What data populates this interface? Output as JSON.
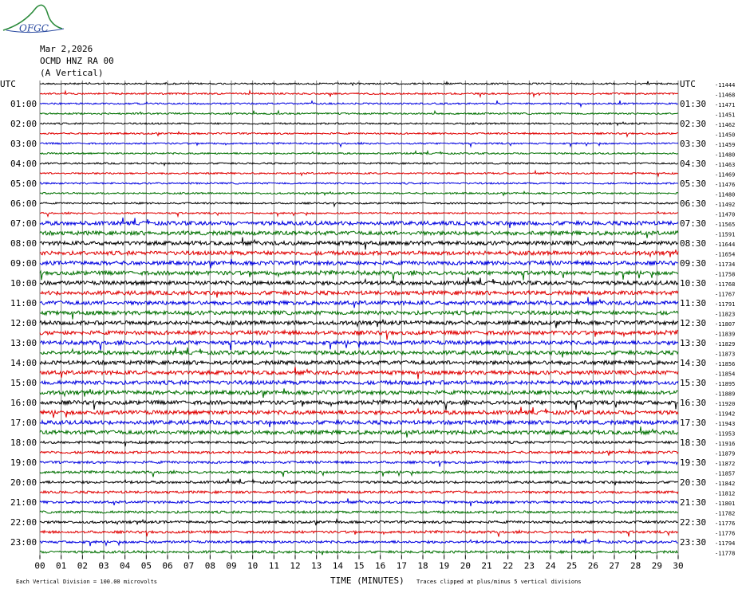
{
  "header": {
    "logo": "OFGC",
    "date": "Mar 2,2026",
    "station": "OCMD HNZ RA 00",
    "component": "(A Vertical)"
  },
  "left_labels": [
    "UTC",
    "01:00",
    "02:00",
    "03:00",
    "04:00",
    "05:00",
    "06:00",
    "07:00",
    "08:00",
    "09:00",
    "10:00",
    "11:00",
    "12:00",
    "13:00",
    "14:00",
    "15:00",
    "16:00",
    "17:00",
    "18:00",
    "19:00",
    "20:00",
    "21:00",
    "22:00",
    "23:00"
  ],
  "right_labels": [
    "UTC",
    "01:30",
    "02:30",
    "03:30",
    "04:30",
    "05:30",
    "06:30",
    "07:30",
    "08:30",
    "09:30",
    "10:30",
    "11:30",
    "12:30",
    "13:30",
    "14:30",
    "15:30",
    "16:30",
    "17:30",
    "18:30",
    "19:30",
    "20:30",
    "21:30",
    "22:30",
    "23:30"
  ],
  "offsets": [
    -11444,
    -11468,
    -11471,
    -11451,
    -11462,
    -11450,
    -11459,
    -11480,
    -11463,
    -11469,
    -11476,
    -11480,
    -11492,
    -11470,
    -11565,
    -11591,
    -11644,
    -11654,
    -11734,
    -11758,
    -11768,
    -11767,
    -11791,
    -11823,
    -11807,
    -11839,
    -11829,
    -11873,
    -11856,
    -11854,
    -11895,
    -11889,
    -11920,
    -11942,
    -11943,
    -11953,
    -11916,
    -11879,
    -11872,
    -11857,
    -11842,
    -11812,
    -11801,
    -11782,
    -11776,
    -11776,
    -11794,
    -11778
  ],
  "x_ticks": [
    "00",
    "01",
    "02",
    "03",
    "04",
    "05",
    "06",
    "07",
    "08",
    "09",
    "10",
    "11",
    "12",
    "13",
    "14",
    "15",
    "16",
    "17",
    "18",
    "19",
    "20",
    "21",
    "22",
    "23",
    "24",
    "25",
    "26",
    "27",
    "28",
    "29",
    "30"
  ],
  "x_axis_label": "TIME (MINUTES)",
  "footer": {
    "scale": "Each Vertical Division =  100.00 microvolts",
    "clip": "Traces clipped at plus/minus 5 vertical divisions"
  }
}
